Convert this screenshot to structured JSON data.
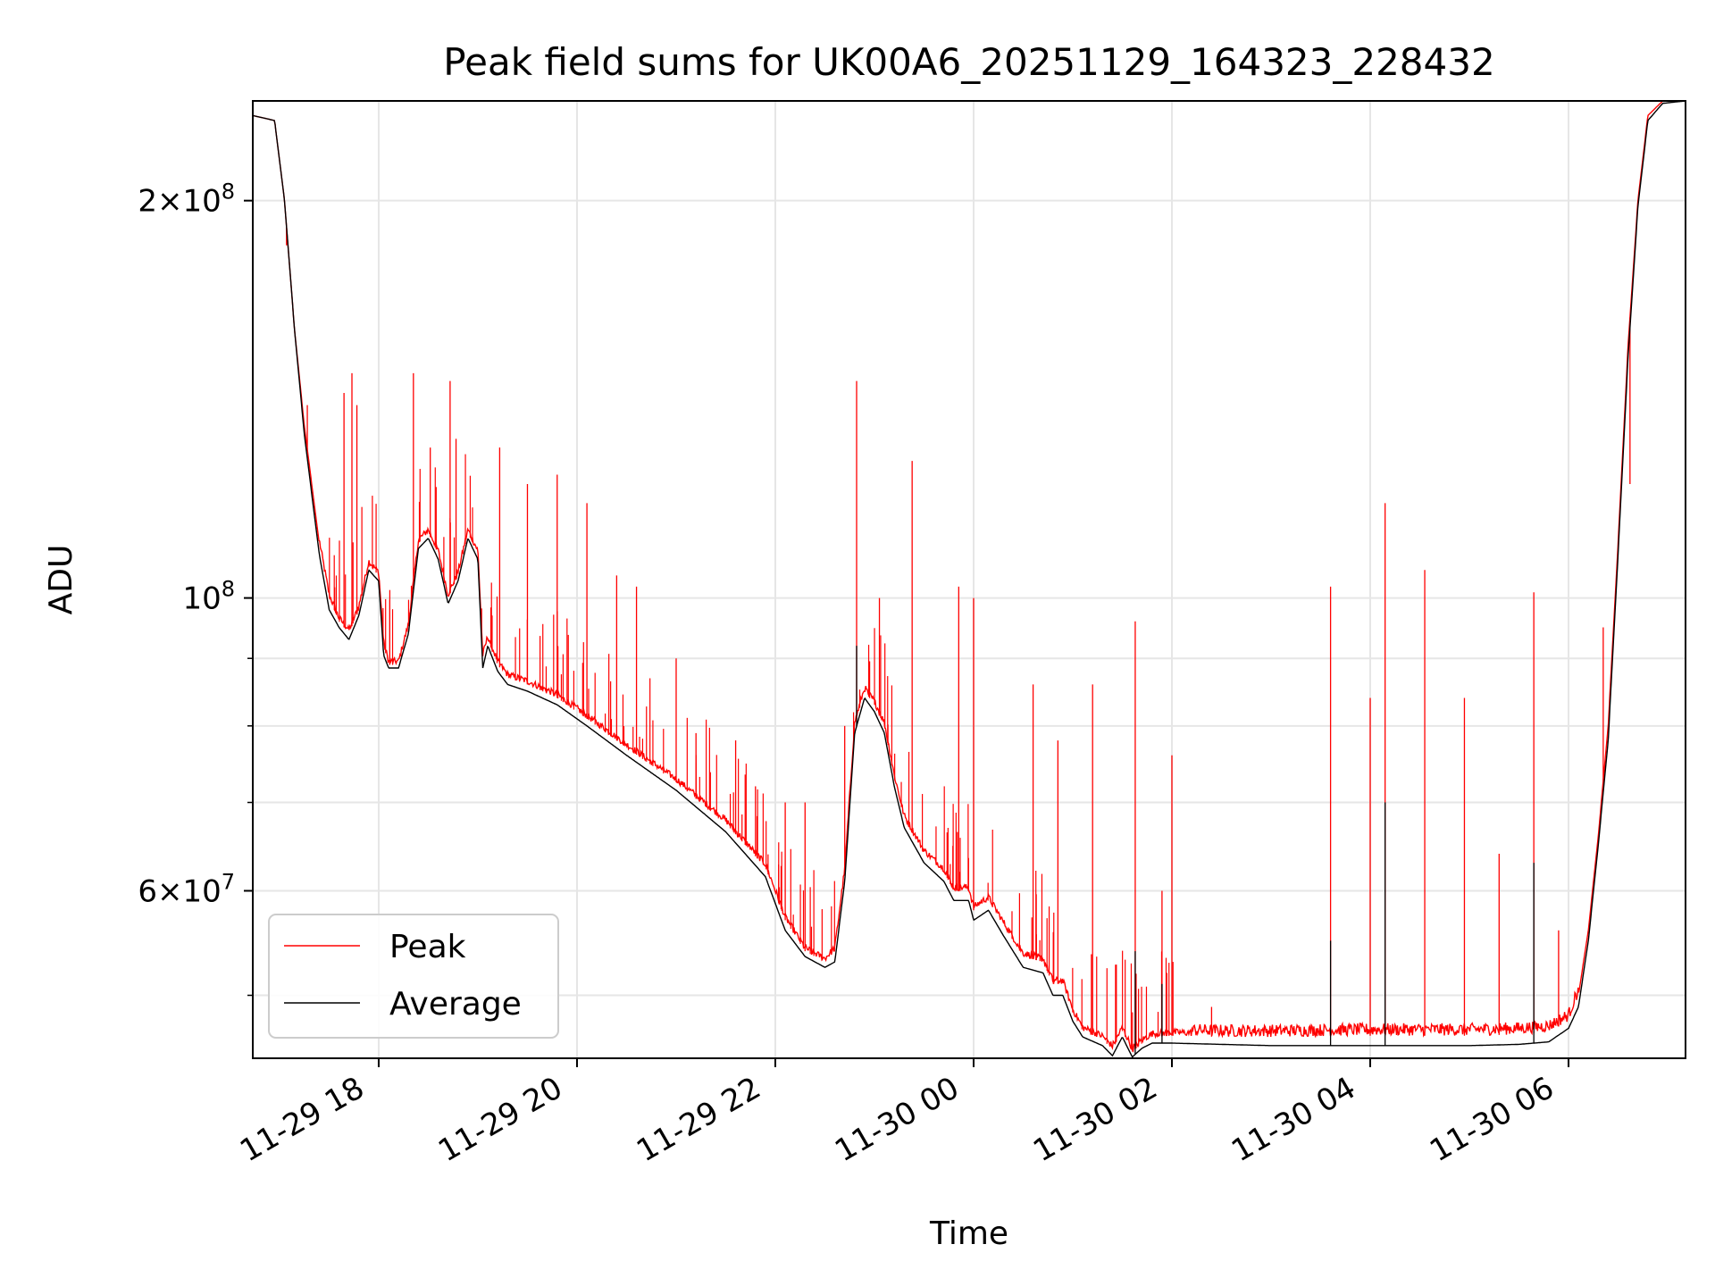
{
  "chart_data": {
    "type": "line",
    "title": "Peak field sums for UK00A6_20251129_164323_228432",
    "xlabel": "Time",
    "ylabel": "ADU",
    "yscale": "log",
    "xlim_hours": [
      -1.27,
      13.18
    ],
    "ylim": [
      44800000,
      238000000
    ],
    "grid": true,
    "legend_position": "lower-left",
    "x_ticks": [
      {
        "hours": 0,
        "label": "11-29 18"
      },
      {
        "hours": 2,
        "label": "11-29 20"
      },
      {
        "hours": 4,
        "label": "11-29 22"
      },
      {
        "hours": 6,
        "label": "11-30 00"
      },
      {
        "hours": 8,
        "label": "11-30 02"
      },
      {
        "hours": 10,
        "label": "11-30 04"
      },
      {
        "hours": 12,
        "label": "11-30 06"
      }
    ],
    "y_ticks": [
      {
        "value": 200000000,
        "mantissa": "2",
        "exp": "8"
      },
      {
        "value": 100000000,
        "mantissa": "",
        "exp": "8"
      },
      {
        "value": 60000000,
        "mantissa": "6",
        "exp": "7"
      }
    ],
    "y_minor_ticks": [
      50000000,
      70000000,
      80000000,
      90000000
    ],
    "x_time_origin": "2025-11-29 18:00",
    "series": [
      {
        "name": "Peak",
        "color": "#ff0000",
        "baseline": [
          [
            -1.27,
            232000000
          ],
          [
            -1.05,
            230000000
          ],
          [
            -0.95,
            200000000
          ],
          [
            -0.85,
            160000000
          ],
          [
            -0.75,
            135000000
          ],
          [
            -0.6,
            110000000
          ],
          [
            -0.5,
            100000000
          ],
          [
            -0.4,
            96000000
          ],
          [
            -0.3,
            94000000
          ],
          [
            -0.2,
            98000000
          ],
          [
            -0.1,
            106000000
          ],
          [
            0.0,
            104000000
          ],
          [
            0.05,
            92000000
          ],
          [
            0.1,
            89000000
          ],
          [
            0.2,
            89000000
          ],
          [
            0.3,
            95000000
          ],
          [
            0.4,
            110000000
          ],
          [
            0.5,
            112000000
          ],
          [
            0.6,
            108000000
          ],
          [
            0.7,
            100000000
          ],
          [
            0.8,
            104000000
          ],
          [
            0.9,
            112000000
          ],
          [
            1.0,
            108000000
          ],
          [
            1.05,
            90000000
          ],
          [
            1.1,
            93000000
          ],
          [
            1.2,
            89000000
          ],
          [
            1.3,
            87000000
          ],
          [
            1.5,
            86000000
          ],
          [
            1.8,
            84000000
          ],
          [
            2.1,
            81000000
          ],
          [
            2.5,
            77000000
          ],
          [
            3.0,
            72500000
          ],
          [
            3.5,
            67500000
          ],
          [
            3.9,
            62500000
          ],
          [
            4.1,
            57000000
          ],
          [
            4.3,
            54000000
          ],
          [
            4.5,
            53000000
          ],
          [
            4.6,
            54000000
          ],
          [
            4.7,
            62000000
          ],
          [
            4.8,
            80000000
          ],
          [
            4.9,
            85000000
          ],
          [
            5.0,
            83000000
          ],
          [
            5.1,
            80000000
          ],
          [
            5.2,
            73000000
          ],
          [
            5.3,
            68000000
          ],
          [
            5.5,
            64000000
          ],
          [
            5.7,
            62000000
          ],
          [
            5.8,
            60000000
          ],
          [
            5.95,
            60000000
          ],
          [
            6.0,
            58000000
          ],
          [
            6.15,
            59000000
          ],
          [
            6.3,
            56500000
          ],
          [
            6.5,
            53500000
          ],
          [
            6.7,
            53000000
          ],
          [
            6.8,
            51000000
          ],
          [
            6.9,
            51000000
          ],
          [
            7.0,
            48500000
          ],
          [
            7.1,
            47000000
          ],
          [
            7.3,
            46300000
          ],
          [
            7.4,
            45500000
          ],
          [
            7.5,
            47000000
          ],
          [
            7.6,
            45300000
          ],
          [
            7.7,
            46000000
          ],
          [
            7.8,
            46500000
          ],
          [
            8.0,
            46600000
          ],
          [
            8.5,
            46500000
          ],
          [
            9.0,
            46500000
          ],
          [
            10.0,
            46600000
          ],
          [
            11.0,
            46600000
          ],
          [
            11.5,
            46700000
          ],
          [
            11.8,
            46900000
          ],
          [
            12.0,
            47800000
          ],
          [
            12.1,
            50000000
          ],
          [
            12.2,
            56000000
          ],
          [
            12.3,
            66000000
          ],
          [
            12.4,
            80000000
          ],
          [
            12.5,
            110000000
          ],
          [
            12.6,
            155000000
          ],
          [
            12.7,
            200000000
          ],
          [
            12.8,
            232000000
          ],
          [
            12.95,
            238000000
          ],
          [
            13.18,
            238000000
          ]
        ],
        "spikes": [
          [
            -0.93,
            185000000
          ],
          [
            -0.82,
            152000000
          ],
          [
            -0.72,
            140000000
          ],
          [
            -0.35,
            143000000
          ],
          [
            -0.27,
            148000000
          ],
          [
            -0.22,
            140000000
          ],
          [
            0.35,
            148000000
          ],
          [
            0.52,
            130000000
          ],
          [
            0.72,
            146000000
          ],
          [
            0.78,
            132000000
          ],
          [
            1.22,
            130000000
          ],
          [
            1.5,
            122000000
          ],
          [
            1.8,
            124000000
          ],
          [
            2.1,
            118000000
          ],
          [
            2.4,
            104000000
          ],
          [
            2.6,
            102000000
          ],
          [
            3.0,
            90000000
          ],
          [
            3.2,
            79000000
          ],
          [
            3.6,
            78000000
          ],
          [
            3.8,
            72000000
          ],
          [
            4.1,
            70000000
          ],
          [
            4.3,
            70000000
          ],
          [
            4.7,
            80000000
          ],
          [
            4.82,
            146000000
          ],
          [
            5.05,
            100000000
          ],
          [
            5.38,
            127000000
          ],
          [
            5.85,
            102000000
          ],
          [
            6.0,
            100000000
          ],
          [
            6.6,
            86000000
          ],
          [
            6.85,
            78000000
          ],
          [
            7.2,
            86000000
          ],
          [
            7.63,
            96000000
          ],
          [
            7.9,
            60000000
          ],
          [
            8.0,
            76000000
          ],
          [
            8.4,
            49000000
          ],
          [
            9.6,
            102000000
          ],
          [
            10.0,
            84000000
          ],
          [
            10.15,
            118000000
          ],
          [
            10.55,
            105000000
          ],
          [
            10.95,
            84000000
          ],
          [
            11.3,
            64000000
          ],
          [
            11.65,
            101000000
          ],
          [
            11.9,
            56000000
          ],
          [
            12.35,
            95000000
          ],
          [
            12.62,
            122000000
          ]
        ],
        "noise_from_hours": 8.2,
        "noise_amplitude": 0.022,
        "spike_count": 160
      },
      {
        "name": "Average",
        "color": "#000000",
        "baseline": [
          [
            -1.27,
            232000000
          ],
          [
            -1.05,
            230000000
          ],
          [
            -0.95,
            200000000
          ],
          [
            -0.85,
            160000000
          ],
          [
            -0.75,
            133000000
          ],
          [
            -0.6,
            108000000
          ],
          [
            -0.5,
            98000000
          ],
          [
            -0.4,
            95000000
          ],
          [
            -0.3,
            93000000
          ],
          [
            -0.2,
            97000000
          ],
          [
            -0.1,
            105000000
          ],
          [
            0.0,
            103000000
          ],
          [
            0.05,
            90500000
          ],
          [
            0.1,
            88500000
          ],
          [
            0.2,
            88500000
          ],
          [
            0.3,
            94000000
          ],
          [
            0.4,
            109000000
          ],
          [
            0.5,
            111000000
          ],
          [
            0.6,
            107000000
          ],
          [
            0.7,
            99000000
          ],
          [
            0.8,
            103000000
          ],
          [
            0.9,
            111000000
          ],
          [
            1.0,
            107000000
          ],
          [
            1.05,
            88500000
          ],
          [
            1.1,
            92000000
          ],
          [
            1.2,
            88000000
          ],
          [
            1.3,
            86000000
          ],
          [
            1.5,
            85000000
          ],
          [
            1.8,
            83000000
          ],
          [
            2.1,
            80000000
          ],
          [
            2.5,
            76000000
          ],
          [
            3.0,
            71500000
          ],
          [
            3.5,
            66500000
          ],
          [
            3.9,
            61500000
          ],
          [
            4.1,
            56000000
          ],
          [
            4.3,
            53500000
          ],
          [
            4.5,
            52500000
          ],
          [
            4.6,
            53000000
          ],
          [
            4.7,
            61000000
          ],
          [
            4.8,
            79000000
          ],
          [
            4.9,
            84000000
          ],
          [
            5.0,
            82000000
          ],
          [
            5.1,
            79000000
          ],
          [
            5.2,
            72000000
          ],
          [
            5.3,
            67000000
          ],
          [
            5.5,
            63000000
          ],
          [
            5.7,
            61000000
          ],
          [
            5.8,
            59000000
          ],
          [
            5.95,
            59000000
          ],
          [
            6.0,
            57000000
          ],
          [
            6.15,
            58000000
          ],
          [
            6.3,
            55500000
          ],
          [
            6.5,
            52500000
          ],
          [
            6.7,
            52000000
          ],
          [
            6.8,
            50000000
          ],
          [
            6.9,
            50000000
          ],
          [
            7.0,
            47800000
          ],
          [
            7.1,
            46500000
          ],
          [
            7.3,
            45800000
          ],
          [
            7.4,
            45000000
          ],
          [
            7.5,
            46500000
          ],
          [
            7.6,
            44900000
          ],
          [
            7.7,
            45600000
          ],
          [
            7.8,
            46000000
          ],
          [
            8.0,
            46000000
          ],
          [
            8.5,
            45900000
          ],
          [
            9.0,
            45800000
          ],
          [
            10.0,
            45800000
          ],
          [
            11.0,
            45800000
          ],
          [
            11.5,
            45900000
          ],
          [
            11.8,
            46100000
          ],
          [
            12.0,
            47200000
          ],
          [
            12.1,
            49000000
          ],
          [
            12.2,
            55000000
          ],
          [
            12.3,
            65000000
          ],
          [
            12.4,
            78000000
          ],
          [
            12.5,
            108000000
          ],
          [
            12.6,
            152000000
          ],
          [
            12.7,
            198000000
          ],
          [
            12.8,
            230000000
          ],
          [
            12.95,
            237000000
          ],
          [
            13.18,
            238000000
          ]
        ],
        "spikes": [
          [
            4.82,
            92000000
          ],
          [
            9.6,
            55000000
          ],
          [
            10.15,
            70000000
          ],
          [
            11.65,
            63000000
          ],
          [
            7.63,
            54000000
          ],
          [
            7.9,
            51000000
          ]
        ],
        "noise_from_hours": 99,
        "noise_amplitude": 0.0,
        "spike_count": 0
      }
    ]
  }
}
